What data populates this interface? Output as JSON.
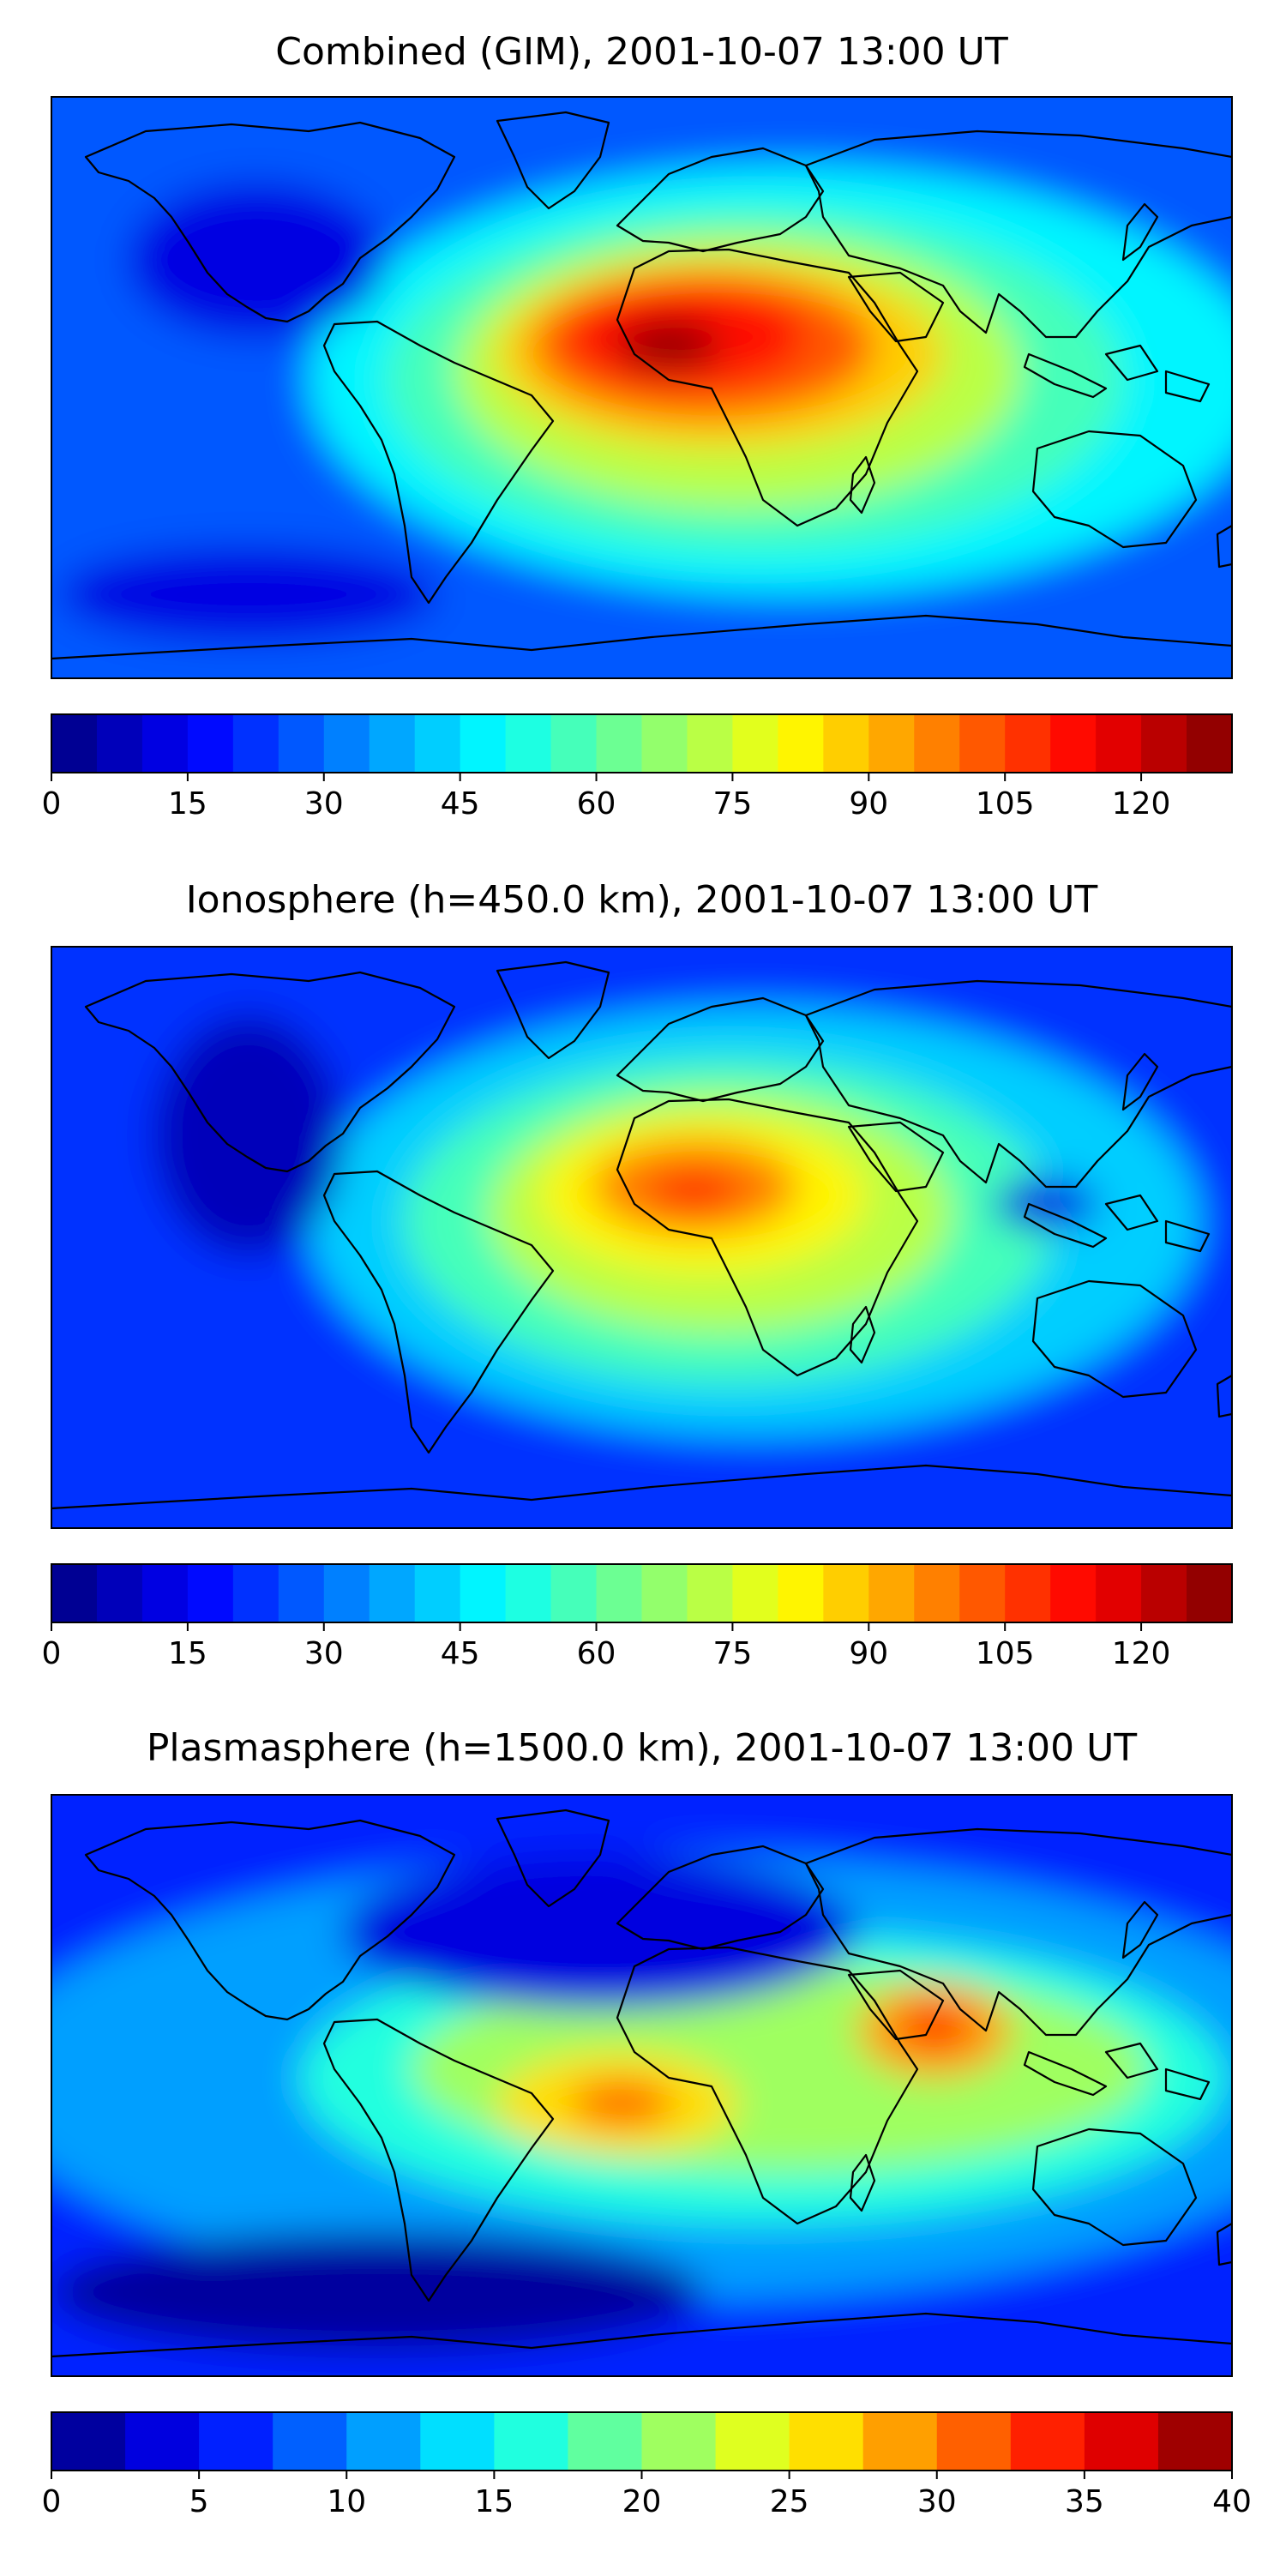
{
  "chart_data": [
    {
      "type": "heatmap",
      "title": "Combined (GIM), 2001-10-07 13:00 UT",
      "colorbar": {
        "min": 0,
        "max": 130,
        "step": 5,
        "ticks": [
          "0",
          "15",
          "30",
          "45",
          "60",
          "75",
          "90",
          "105",
          "120"
        ]
      },
      "features": [
        {
          "name": "background",
          "value": 27
        },
        {
          "name": "crest-band",
          "value": 45
        },
        {
          "name": "crest-band",
          "value": 58
        },
        {
          "name": "crest-band",
          "value": 72
        },
        {
          "name": "africa-crest",
          "value": 88
        },
        {
          "name": "africa-crest",
          "value": 100
        },
        {
          "name": "africa-crest",
          "value": 112
        },
        {
          "name": "africa-peak",
          "value": 125
        },
        {
          "name": "pacific-low",
          "value": 12
        },
        {
          "name": "southern-low",
          "value": 10
        }
      ]
    },
    {
      "type": "heatmap",
      "title": "Ionosphere  (h=450.0 km), 2001-10-07 13:00 UT",
      "colorbar": {
        "min": 0,
        "max": 130,
        "step": 5,
        "ticks": [
          "0",
          "15",
          "30",
          "45",
          "60",
          "75",
          "90",
          "105",
          "120"
        ]
      },
      "features": [
        {
          "name": "background",
          "value": 22
        },
        {
          "name": "crest-band",
          "value": 40
        },
        {
          "name": "crest-band",
          "value": 55
        },
        {
          "name": "crest-band",
          "value": 70
        },
        {
          "name": "africa-crest",
          "value": 82
        },
        {
          "name": "africa-crest",
          "value": 95
        },
        {
          "name": "africa-peak",
          "value": 108
        },
        {
          "name": "asia-low",
          "value": 10
        },
        {
          "name": "pacific-low",
          "value": 8
        }
      ]
    },
    {
      "type": "heatmap",
      "title": "Plasmasphere (h=1500.0 km), 2001-10-07 13:00 UT",
      "colorbar": {
        "min": 0,
        "max": 40,
        "step": 2.5,
        "ticks": [
          "0",
          "5",
          "10",
          "15",
          "20",
          "25",
          "30",
          "35",
          "40"
        ]
      },
      "features": [
        {
          "name": "background",
          "value": 6.5
        },
        {
          "name": "mid-band",
          "value": 11
        },
        {
          "name": "crest-band",
          "value": 16
        },
        {
          "name": "crest-band",
          "value": 21
        },
        {
          "name": "africa-crest",
          "value": 26
        },
        {
          "name": "africa-peak",
          "value": 30
        },
        {
          "name": "india-crest",
          "value": 29
        },
        {
          "name": "india-peak",
          "value": 34
        },
        {
          "name": "north-low",
          "value": 3
        },
        {
          "name": "south-low",
          "value": 2
        }
      ]
    }
  ]
}
